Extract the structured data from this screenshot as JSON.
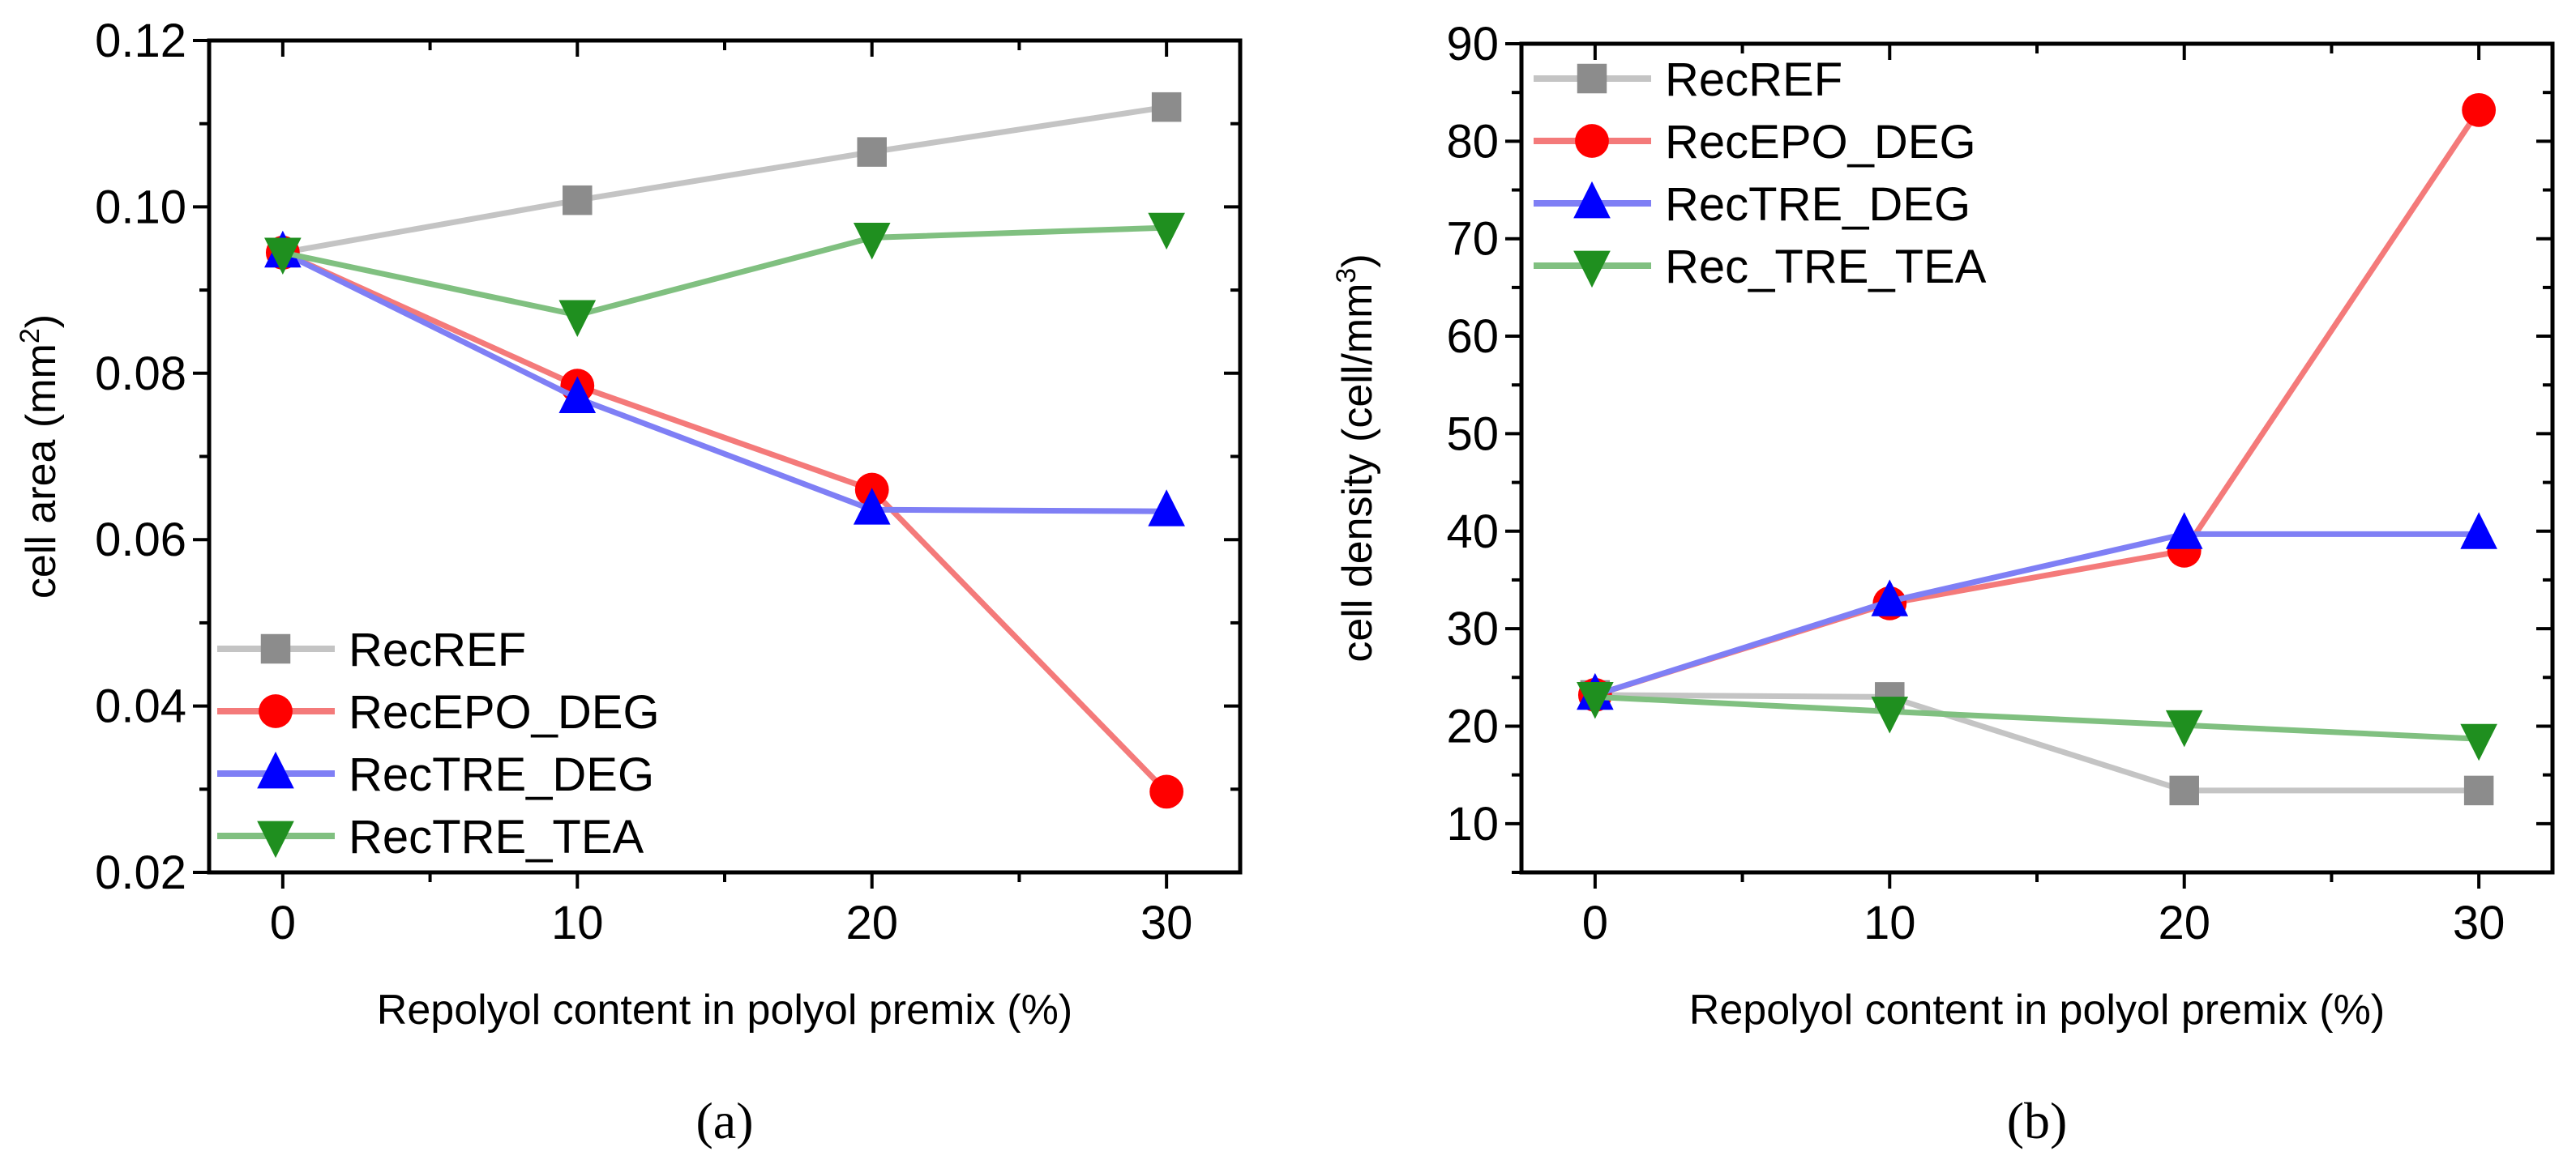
{
  "chart_data": [
    {
      "type": "line",
      "panel_label": "(a)",
      "title": "",
      "xlabel": "Repolyol content in polyol premix (%)",
      "ylabel": "cell area (mm",
      "ylabel_sup": "2",
      "ylabel_end": ")",
      "x": [
        0,
        10,
        20,
        30
      ],
      "xlim": [
        -2.5,
        32.5
      ],
      "ylim": [
        0.02,
        0.12
      ],
      "xticks": [
        0,
        10,
        20,
        30
      ],
      "xtick_labels": [
        "0",
        "10",
        "20",
        "30"
      ],
      "yticks": [
        0.02,
        0.04,
        0.06,
        0.08,
        0.1,
        0.12
      ],
      "ytick_labels": [
        "0.02",
        "0.04",
        "0.06",
        "0.08",
        "0.10",
        "0.12"
      ],
      "grid": false,
      "legend_position": "bottom-left",
      "series": [
        {
          "name": "RecREF",
          "marker": "square",
          "marker_color": "#8c8c8c",
          "line_color": "#c4c4c4",
          "values": [
            0.0945,
            0.1008,
            0.1066,
            0.112
          ]
        },
        {
          "name": "RecEPO_DEG",
          "marker": "circle",
          "marker_color": "#ff0000",
          "line_color": "#f47a7a",
          "values": [
            0.0945,
            0.0785,
            0.066,
            0.0297
          ]
        },
        {
          "name": "RecTRE_DEG",
          "marker": "triangle-up",
          "marker_color": "#0000ff",
          "line_color": "#7f7ff5",
          "values": [
            0.0945,
            0.077,
            0.0636,
            0.0634
          ]
        },
        {
          "name": "RecTRE_TEA",
          "marker": "triangle-down",
          "marker_color": "#1f8f1f",
          "line_color": "#80c080",
          "values": [
            0.0945,
            0.087,
            0.0963,
            0.0975
          ]
        }
      ]
    },
    {
      "type": "line",
      "panel_label": "(b)",
      "title": "",
      "xlabel": "Repolyol content in polyol premix (%)",
      "ylabel": "cell density (cell/mm",
      "ylabel_sup": "3",
      "ylabel_end": ")",
      "x": [
        0,
        10,
        20,
        30
      ],
      "xlim": [
        -2.5,
        32.5
      ],
      "ylim": [
        5,
        90
      ],
      "xticks": [
        0,
        10,
        20,
        30
      ],
      "xtick_labels": [
        "0",
        "10",
        "20",
        "30"
      ],
      "yticks": [
        10,
        20,
        30,
        40,
        50,
        60,
        70,
        80,
        90
      ],
      "ytick_labels": [
        "10",
        "20",
        "30",
        "40",
        "50",
        "60",
        "70",
        "80",
        "90"
      ],
      "grid": false,
      "legend_position": "top-left",
      "series": [
        {
          "name": "RecREF",
          "marker": "square",
          "marker_color": "#8c8c8c",
          "line_color": "#c4c4c4",
          "values": [
            23.2,
            23.0,
            13.4,
            13.4
          ]
        },
        {
          "name": "RecEPO_DEG",
          "marker": "circle",
          "marker_color": "#ff0000",
          "line_color": "#f47a7a",
          "values": [
            23.2,
            32.6,
            38.0,
            83.2
          ]
        },
        {
          "name": "RecTRE_DEG",
          "marker": "triangle-up",
          "marker_color": "#0000ff",
          "line_color": "#7f7ff5",
          "values": [
            23.2,
            32.8,
            39.7,
            39.7
          ]
        },
        {
          "name": "Rec_TRE_TEA",
          "marker": "triangle-down",
          "marker_color": "#1f8f1f",
          "line_color": "#80c080",
          "values": [
            23.0,
            21.5,
            20.1,
            18.7
          ]
        }
      ]
    }
  ]
}
